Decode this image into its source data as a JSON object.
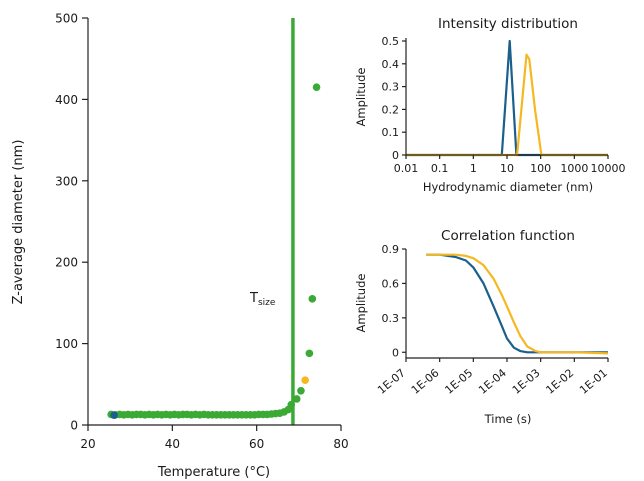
{
  "chart_data": [
    {
      "type": "scatter",
      "xlabel": "Temperature (°C)",
      "ylabel": "Z-average diameter (nm)",
      "xlim": [
        20,
        80
      ],
      "ylim": [
        0,
        500
      ],
      "xticks": [
        20,
        40,
        60,
        80
      ],
      "yticks": [
        0,
        100,
        200,
        300,
        400,
        500
      ],
      "annotation": {
        "text": "T",
        "subscript": "size"
      },
      "vertical_line": {
        "x": 68.6,
        "color": "#3aaa35"
      },
      "series": [
        {
          "color": "#3aaa35",
          "points": [
            [
              25.5,
              13
            ],
            [
              26.5,
              12.5
            ],
            [
              27.5,
              13
            ],
            [
              28.5,
              12.5
            ],
            [
              29.5,
              13
            ],
            [
              30.5,
              12.5
            ],
            [
              31.5,
              13
            ],
            [
              32.5,
              13
            ],
            [
              33.5,
              12.5
            ],
            [
              34.5,
              13
            ],
            [
              35.5,
              12.5
            ],
            [
              36.5,
              13
            ],
            [
              37.5,
              12.5
            ],
            [
              38.5,
              13
            ],
            [
              39.5,
              12.5
            ],
            [
              40.5,
              13
            ],
            [
              41.5,
              12.5
            ],
            [
              42.5,
              13
            ],
            [
              43.5,
              13
            ],
            [
              44.5,
              12.5
            ],
            [
              45.5,
              13
            ],
            [
              46.5,
              12.5
            ],
            [
              47.5,
              13
            ],
            [
              48.5,
              12.5
            ],
            [
              49.5,
              12.5
            ],
            [
              50.5,
              12.5
            ],
            [
              51.5,
              12.5
            ],
            [
              52.5,
              12.5
            ],
            [
              53.5,
              12.5
            ],
            [
              54.5,
              12.5
            ],
            [
              55.5,
              12.5
            ],
            [
              56.5,
              12.5
            ],
            [
              57.5,
              12.5
            ],
            [
              58.5,
              12.5
            ],
            [
              59.5,
              12.5
            ],
            [
              60.5,
              13
            ],
            [
              61.5,
              13
            ],
            [
              62.5,
              13
            ],
            [
              63.5,
              13.5
            ],
            [
              64.5,
              14
            ],
            [
              65.5,
              14.5
            ],
            [
              66.5,
              16
            ],
            [
              67.5,
              19
            ],
            [
              68.2,
              25
            ],
            [
              69.5,
              32
            ],
            [
              70.5,
              42
            ],
            [
              72.5,
              88
            ],
            [
              73.2,
              155
            ],
            [
              74.2,
              415
            ]
          ]
        },
        {
          "color": "#f5b821",
          "points": [
            [
              71.5,
              55
            ]
          ]
        },
        {
          "color": "#1b5f8c",
          "points": [
            [
              26.2,
              12
            ]
          ]
        }
      ]
    },
    {
      "type": "line",
      "title": "Intensity distribution",
      "xlabel": "Hydrodynamic diameter (nm)",
      "ylabel": "Amplitude",
      "xscale": "log",
      "xlim": [
        0.01,
        10000
      ],
      "ylim": [
        0,
        0.5
      ],
      "xticks": [
        "0.01",
        "0.1",
        "1",
        "10",
        "100",
        "1000",
        "10000"
      ],
      "yticks": [
        "0",
        "0.1",
        "0.2",
        "0.3",
        "0.4",
        "0.5"
      ],
      "series": [
        {
          "color": "#1b5f8c",
          "x": [
            0.01,
            7,
            12,
            19,
            10000
          ],
          "y": [
            0,
            0,
            0.5,
            0,
            0
          ]
        },
        {
          "color": "#f5b821",
          "x": [
            0.01,
            20,
            38,
            46,
            68,
            105,
            10000
          ],
          "y": [
            0,
            0,
            0.44,
            0.42,
            0.2,
            0,
            0
          ]
        }
      ]
    },
    {
      "type": "line",
      "title": "Correlation function",
      "xlabel": "Time (s)",
      "ylabel": "Amplitude",
      "xscale": "log",
      "xlim": [
        1e-07,
        0.1
      ],
      "ylim": [
        -0.05,
        0.9
      ],
      "xticks": [
        "1E-07",
        "1E-06",
        "1E-05",
        "1E-04",
        "1E-03",
        "1E-02",
        "1E-01"
      ],
      "yticks": [
        "0",
        "0.3",
        "0.6",
        "0.9"
      ],
      "series": [
        {
          "color": "#1b5f8c",
          "x": [
            4e-07,
            1e-06,
            3e-06,
            6e-06,
            1e-05,
            2e-05,
            4e-05,
            7e-05,
            0.0001,
            0.00016,
            0.00025,
            0.0004,
            0.001,
            0.01,
            0.1
          ],
          "y": [
            0.85,
            0.85,
            0.83,
            0.8,
            0.74,
            0.6,
            0.4,
            0.23,
            0.12,
            0.04,
            0.01,
            0.0,
            0.0,
            0.0,
            0.0
          ]
        },
        {
          "color": "#f5b821",
          "x": [
            4e-07,
            1e-06,
            3e-06,
            6e-06,
            1e-05,
            2e-05,
            4e-05,
            7e-05,
            0.0001,
            0.00016,
            0.00025,
            0.0004,
            0.0007,
            0.001,
            0.01,
            0.1
          ],
          "y": [
            0.85,
            0.85,
            0.85,
            0.84,
            0.82,
            0.76,
            0.64,
            0.5,
            0.4,
            0.26,
            0.14,
            0.05,
            0.01,
            0.0,
            0.0,
            -0.01
          ]
        }
      ]
    }
  ]
}
